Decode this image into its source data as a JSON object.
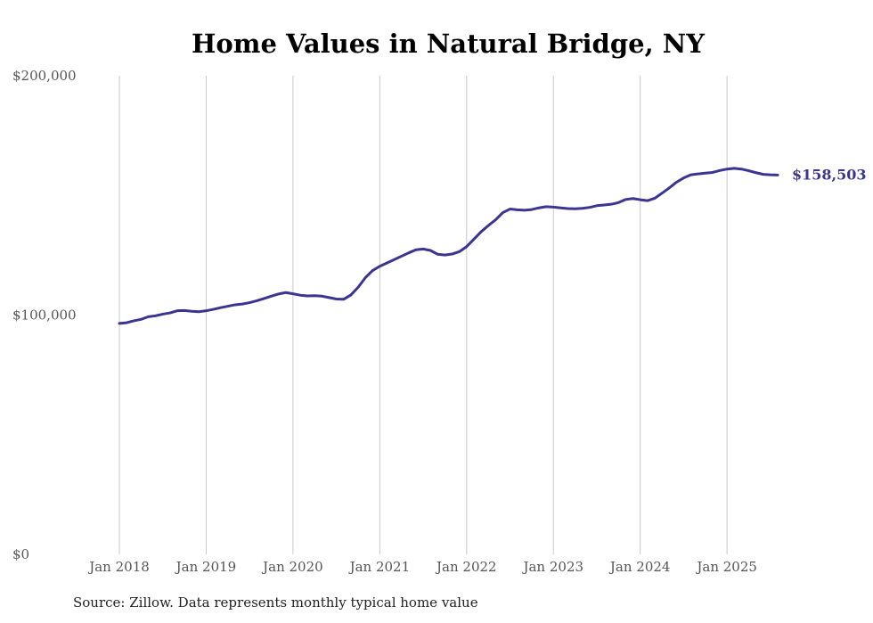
{
  "chart_data": {
    "type": "line",
    "title": "Home Values in Natural Bridge, NY",
    "xlabel": "",
    "ylabel": "",
    "ylim": [
      0,
      200000
    ],
    "y_ticks": [
      {
        "value": 0,
        "label": "$0"
      },
      {
        "value": 100000,
        "label": "$100,000"
      },
      {
        "value": 200000,
        "label": "$200,000"
      }
    ],
    "x_ticks": [
      {
        "value": "2018-01",
        "label": "Jan 2018"
      },
      {
        "value": "2019-01",
        "label": "Jan 2019"
      },
      {
        "value": "2020-01",
        "label": "Jan 2020"
      },
      {
        "value": "2021-01",
        "label": "Jan 2021"
      },
      {
        "value": "2022-01",
        "label": "Jan 2022"
      },
      {
        "value": "2023-01",
        "label": "Jan 2023"
      },
      {
        "value": "2024-01",
        "label": "Jan 2024"
      },
      {
        "value": "2025-01",
        "label": "Jan 2025"
      }
    ],
    "grid": "vertical",
    "series": [
      {
        "color": "#3b3592",
        "end_label": "$158,503",
        "points": [
          [
            "2018-01",
            96500
          ],
          [
            "2018-02",
            96800
          ],
          [
            "2018-03",
            97600
          ],
          [
            "2018-04",
            98200
          ],
          [
            "2018-05",
            99300
          ],
          [
            "2018-06",
            99700
          ],
          [
            "2018-07",
            100400
          ],
          [
            "2018-08",
            100900
          ],
          [
            "2018-09",
            101800
          ],
          [
            "2018-10",
            101900
          ],
          [
            "2018-11",
            101600
          ],
          [
            "2018-12",
            101400
          ],
          [
            "2019-01",
            101800
          ],
          [
            "2019-02",
            102400
          ],
          [
            "2019-03",
            103100
          ],
          [
            "2019-04",
            103700
          ],
          [
            "2019-05",
            104300
          ],
          [
            "2019-06",
            104600
          ],
          [
            "2019-07",
            105200
          ],
          [
            "2019-08",
            106000
          ],
          [
            "2019-09",
            106900
          ],
          [
            "2019-10",
            107900
          ],
          [
            "2019-11",
            108800
          ],
          [
            "2019-12",
            109400
          ],
          [
            "2020-01",
            108900
          ],
          [
            "2020-02",
            108300
          ],
          [
            "2020-03",
            108000
          ],
          [
            "2020-04",
            108100
          ],
          [
            "2020-05",
            107900
          ],
          [
            "2020-06",
            107300
          ],
          [
            "2020-07",
            106700
          ],
          [
            "2020-08",
            106600
          ],
          [
            "2020-09",
            108400
          ],
          [
            "2020-10",
            111600
          ],
          [
            "2020-11",
            115600
          ],
          [
            "2020-12",
            118600
          ],
          [
            "2021-01",
            120400
          ],
          [
            "2021-02",
            121800
          ],
          [
            "2021-03",
            123200
          ],
          [
            "2021-04",
            124600
          ],
          [
            "2021-05",
            126000
          ],
          [
            "2021-06",
            127300
          ],
          [
            "2021-07",
            127600
          ],
          [
            "2021-08",
            127000
          ],
          [
            "2021-09",
            125400
          ],
          [
            "2021-10",
            125100
          ],
          [
            "2021-11",
            125500
          ],
          [
            "2021-12",
            126500
          ],
          [
            "2022-01",
            128600
          ],
          [
            "2022-02",
            131700
          ],
          [
            "2022-03",
            134800
          ],
          [
            "2022-04",
            137400
          ],
          [
            "2022-05",
            139800
          ],
          [
            "2022-06",
            142800
          ],
          [
            "2022-07",
            144300
          ],
          [
            "2022-08",
            144000
          ],
          [
            "2022-09",
            143800
          ],
          [
            "2022-10",
            144100
          ],
          [
            "2022-11",
            144800
          ],
          [
            "2022-12",
            145300
          ],
          [
            "2023-01",
            145100
          ],
          [
            "2023-02",
            144800
          ],
          [
            "2023-03",
            144500
          ],
          [
            "2023-04",
            144400
          ],
          [
            "2023-05",
            144600
          ],
          [
            "2023-06",
            145000
          ],
          [
            "2023-07",
            145700
          ],
          [
            "2023-08",
            146000
          ],
          [
            "2023-09",
            146300
          ],
          [
            "2023-10",
            147000
          ],
          [
            "2023-11",
            148300
          ],
          [
            "2023-12",
            148700
          ],
          [
            "2024-01",
            148200
          ],
          [
            "2024-02",
            147800
          ],
          [
            "2024-03",
            148800
          ],
          [
            "2024-04",
            150900
          ],
          [
            "2024-05",
            153100
          ],
          [
            "2024-06",
            155500
          ],
          [
            "2024-07",
            157300
          ],
          [
            "2024-08",
            158600
          ],
          [
            "2024-09",
            159000
          ],
          [
            "2024-10",
            159300
          ],
          [
            "2024-11",
            159600
          ],
          [
            "2024-12",
            160400
          ],
          [
            "2025-01",
            161000
          ],
          [
            "2025-02",
            161300
          ],
          [
            "2025-03",
            161000
          ],
          [
            "2025-04",
            160300
          ],
          [
            "2025-05",
            159500
          ],
          [
            "2025-06",
            158800
          ],
          [
            "2025-07",
            158600
          ],
          [
            "2025-08",
            158503
          ]
        ]
      }
    ]
  },
  "source_note": "Source: Zillow. Data represents monthly typical home value"
}
